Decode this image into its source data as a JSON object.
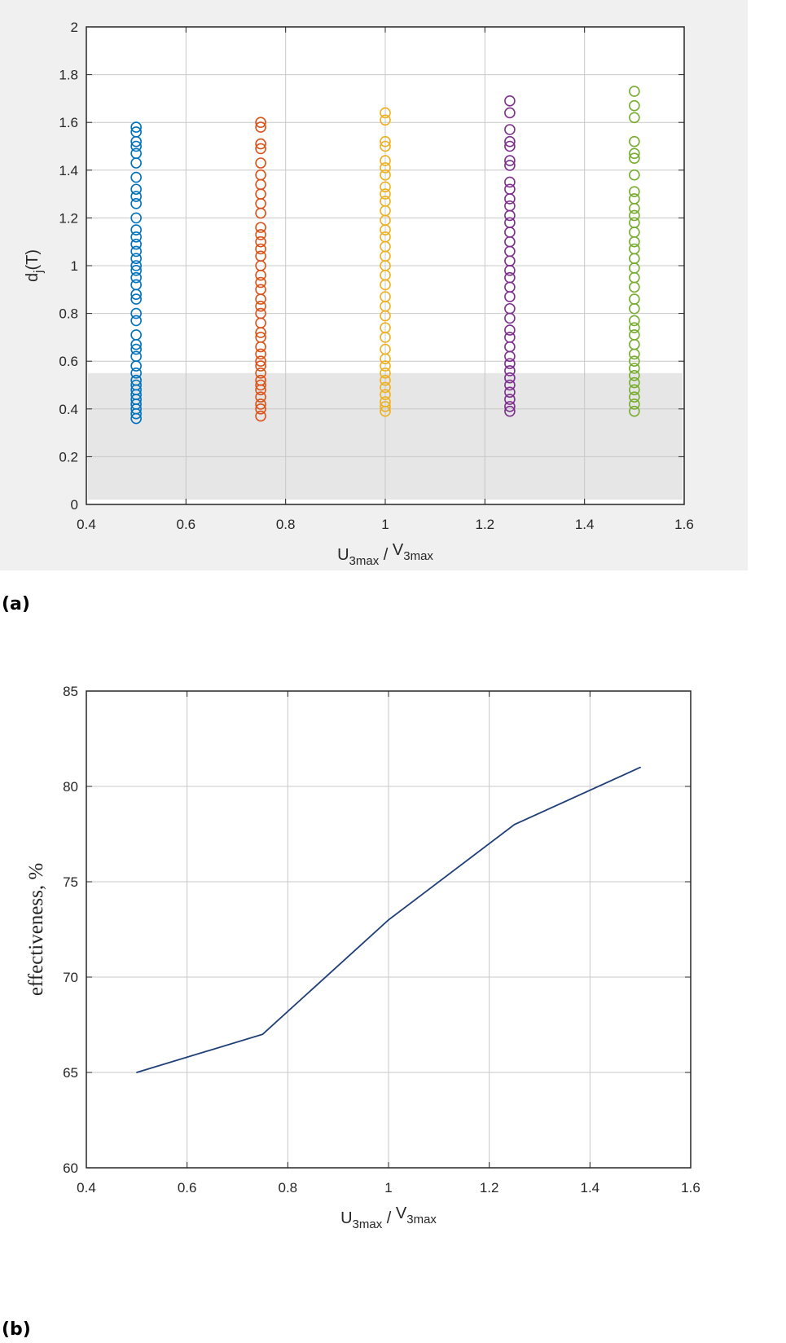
{
  "chart_data": [
    {
      "type": "scatter",
      "panel_label": "(a)",
      "xlabel": {
        "main": "U",
        "sub": "3max",
        "sep": " / ",
        "main2": "V",
        "sub2": "3max"
      },
      "ylabel": {
        "main": "d",
        "sub": "j",
        "rest": "(T)"
      },
      "xlim": [
        0.4,
        1.6
      ],
      "ylim": [
        0,
        2
      ],
      "xticks": [
        "0.4",
        "0.6",
        "0.8",
        "1",
        "1.2",
        "1.4",
        "1.6"
      ],
      "yticks": [
        "0",
        "0.2",
        "0.4",
        "0.6",
        "0.8",
        "1",
        "1.2",
        "1.4",
        "1.6",
        "1.8",
        "2"
      ],
      "grid": true,
      "shaded_region": {
        "ymin": 0.02,
        "ymax": 0.55,
        "color": "#e6e6e6"
      },
      "marker": "circle-open",
      "series": [
        {
          "x": 0.5,
          "color": "#0072BD",
          "y": [
            0.36,
            0.38,
            0.4,
            0.42,
            0.44,
            0.46,
            0.48,
            0.5,
            0.52,
            0.55,
            0.58,
            0.62,
            0.65,
            0.67,
            0.71,
            0.77,
            0.8,
            0.86,
            0.88,
            0.92,
            0.95,
            0.98,
            1.0,
            1.03,
            1.06,
            1.09,
            1.12,
            1.15,
            1.2,
            1.26,
            1.29,
            1.32,
            1.37,
            1.43,
            1.47,
            1.5,
            1.52,
            1.56,
            1.58
          ]
        },
        {
          "x": 0.75,
          "color": "#D95319",
          "y": [
            0.37,
            0.4,
            0.42,
            0.45,
            0.48,
            0.5,
            0.52,
            0.55,
            0.58,
            0.6,
            0.63,
            0.66,
            0.7,
            0.72,
            0.76,
            0.8,
            0.83,
            0.86,
            0.9,
            0.93,
            0.96,
            1.0,
            1.04,
            1.07,
            1.1,
            1.13,
            1.16,
            1.22,
            1.26,
            1.3,
            1.34,
            1.38,
            1.43,
            1.49,
            1.51,
            1.58,
            1.6
          ]
        },
        {
          "x": 1.0,
          "color": "#EDB120",
          "y": [
            0.39,
            0.41,
            0.43,
            0.46,
            0.49,
            0.52,
            0.55,
            0.58,
            0.61,
            0.65,
            0.7,
            0.74,
            0.79,
            0.83,
            0.87,
            0.92,
            0.96,
            1.0,
            1.04,
            1.08,
            1.12,
            1.15,
            1.19,
            1.23,
            1.27,
            1.3,
            1.33,
            1.38,
            1.41,
            1.44,
            1.5,
            1.52,
            1.61,
            1.64
          ]
        },
        {
          "x": 1.25,
          "color": "#7E2F8E",
          "y": [
            0.39,
            0.41,
            0.44,
            0.47,
            0.5,
            0.53,
            0.56,
            0.59,
            0.62,
            0.66,
            0.7,
            0.73,
            0.78,
            0.82,
            0.87,
            0.91,
            0.95,
            0.98,
            1.02,
            1.06,
            1.1,
            1.14,
            1.18,
            1.21,
            1.25,
            1.28,
            1.32,
            1.35,
            1.42,
            1.44,
            1.5,
            1.52,
            1.57,
            1.64,
            1.69
          ]
        },
        {
          "x": 1.5,
          "color": "#77AC30",
          "y": [
            0.39,
            0.42,
            0.45,
            0.48,
            0.51,
            0.54,
            0.57,
            0.6,
            0.63,
            0.67,
            0.71,
            0.74,
            0.77,
            0.82,
            0.86,
            0.91,
            0.95,
            0.99,
            1.03,
            1.07,
            1.1,
            1.14,
            1.18,
            1.21,
            1.24,
            1.28,
            1.31,
            1.38,
            1.45,
            1.47,
            1.52,
            1.62,
            1.67,
            1.73
          ]
        }
      ]
    },
    {
      "type": "line",
      "panel_label": "(b)",
      "xlabel": {
        "main": "U",
        "sub": "3max",
        "sep": " / ",
        "main2": "V",
        "sub2": "3max"
      },
      "ylabel": "effectiveness, %",
      "xlim": [
        0.4,
        1.6
      ],
      "ylim": [
        60,
        85
      ],
      "xticks": [
        "0.4",
        "0.6",
        "0.8",
        "1",
        "1.2",
        "1.4",
        "1.6"
      ],
      "yticks": [
        "60",
        "65",
        "70",
        "75",
        "80",
        "85"
      ],
      "grid": true,
      "series": [
        {
          "name": "effectiveness",
          "color": "#1f3f77",
          "x": [
            0.5,
            0.75,
            1.0,
            1.25,
            1.5
          ],
          "y": [
            65,
            67,
            73,
            78,
            81
          ]
        }
      ]
    }
  ]
}
